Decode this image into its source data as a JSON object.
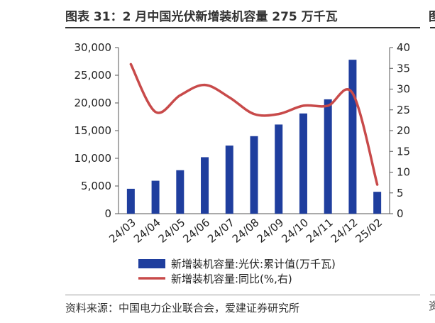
{
  "title": "图表 31：2 月中国光伏新增装机容量 275 万千瓦",
  "source": "资料来源：中国电力企业联合会，爱建证券研究所",
  "edge_title_glyph": "图",
  "edge_source_glyph": "资",
  "colors": {
    "bar": "#1f3e9e",
    "line": "#c84a4a"
  },
  "chart_data": {
    "type": "bar",
    "categories": [
      "24/03",
      "24/04",
      "24/05",
      "24/06",
      "24/07",
      "24/08",
      "24/09",
      "24/10",
      "24/11",
      "24/12",
      "25/02"
    ],
    "series": [
      {
        "name": "新增装机容量:光伏:累计值(万千瓦)",
        "type": "bar",
        "axis": "left",
        "values": [
          4500,
          5950,
          7850,
          10200,
          12300,
          14000,
          16100,
          18100,
          20650,
          27800,
          3950
        ]
      },
      {
        "name": "新增装机容量:同比(%,右)",
        "type": "line",
        "axis": "right",
        "values": [
          36,
          24.5,
          28.5,
          31,
          28,
          24,
          24,
          26,
          26,
          29,
          7
        ]
      }
    ],
    "ylim": [
      0,
      30000
    ],
    "yticks": [
      "0",
      "5,000",
      "10,000",
      "15,000",
      "20,000",
      "25,000",
      "30,000"
    ],
    "y2lim": [
      0,
      40
    ],
    "y2ticks": [
      "0",
      "5",
      "10",
      "15",
      "20",
      "25",
      "30",
      "35",
      "40"
    ],
    "legend_position": "bottom",
    "grid": false
  }
}
